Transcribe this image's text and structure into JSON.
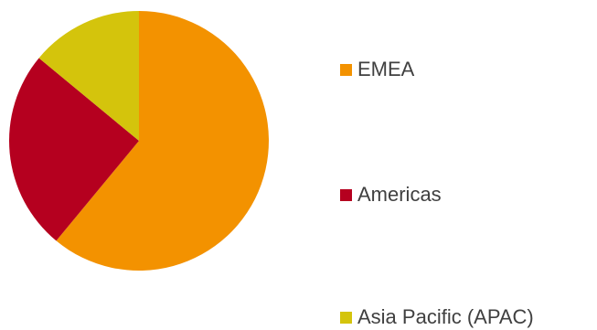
{
  "chart_data": {
    "type": "pie",
    "title": "",
    "start_angle_deg": 0,
    "direction": "clockwise",
    "slices": [
      {
        "label": "EMEA",
        "value": 61,
        "color": "#F39200"
      },
      {
        "label": "Americas",
        "value": 25,
        "color": "#B5001F"
      },
      {
        "label": "Asia Pacific (APAC)",
        "value": 14,
        "color": "#D4C40C"
      }
    ],
    "legend_placement": "right"
  }
}
